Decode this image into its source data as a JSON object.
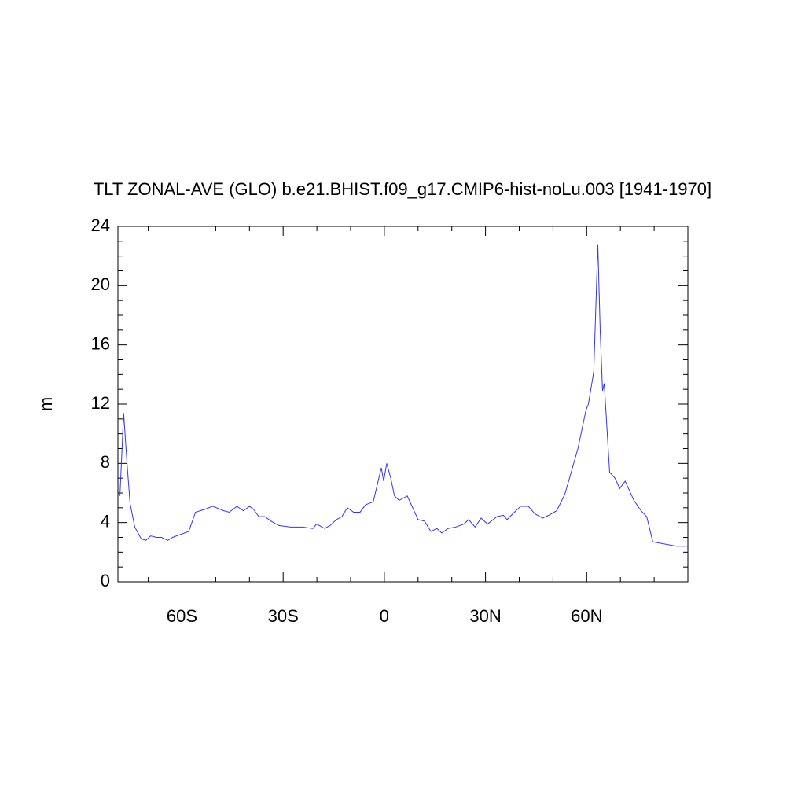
{
  "chart_data": {
    "type": "line",
    "title": "TLT ZONAL-AVE (GLO) b.e21.BHIST.f09_g17.CMIP6-hist-noLu.003 [1941-1970]",
    "ylabel": "m",
    "color": "#3333ff",
    "xlim": [
      -79,
      90
    ],
    "ylim": [
      0,
      24
    ],
    "xticks": [
      {
        "value": -60,
        "label": "60S"
      },
      {
        "value": -30,
        "label": "30S"
      },
      0,
      {
        "value": 30,
        "label": "30N"
      },
      {
        "value": 60,
        "label": "60N"
      }
    ],
    "xminorticks": [
      -70,
      -50,
      -40,
      -20,
      -10,
      10,
      20,
      40,
      50,
      70,
      80,
      90
    ],
    "yticks": [
      0,
      4,
      8,
      12,
      16,
      20,
      24
    ],
    "yminorticks": [
      1,
      2,
      3,
      5,
      6,
      7,
      9,
      10,
      11,
      13,
      14,
      15,
      17,
      18,
      19,
      21,
      22,
      23
    ],
    "x": [
      -78.4,
      -77.3,
      -76.3,
      -75.4,
      -74.0,
      -72.1,
      -70.7,
      -69.3,
      -67.5,
      -66.1,
      -64.2,
      -62.8,
      -58.0,
      -56.0,
      -53.2,
      -50.9,
      -47.6,
      -46.0,
      -43.7,
      -41.8,
      -40.0,
      -38.8,
      -37.2,
      -35.4,
      -33.6,
      -31.3,
      -27.8,
      -24.3,
      -21.2,
      -20.1,
      -17.7,
      -16.1,
      -14.2,
      -12.6,
      -11.0,
      -9.1,
      -7.2,
      -5.6,
      -3.3,
      -0.9,
      -0.2,
      0.7,
      1.9,
      3.0,
      4.4,
      6.8,
      8.4,
      10.0,
      11.9,
      13.8,
      15.6,
      17.0,
      18.9,
      21.2,
      23.6,
      25.0,
      26.9,
      28.7,
      30.6,
      33.4,
      35.3,
      36.4,
      38.1,
      40.4,
      42.7,
      44.6,
      46.9,
      48.8,
      51.1,
      53.5,
      54.9,
      57.4,
      59.8,
      60.5,
      62.1,
      63.3,
      64.0,
      64.7,
      65.2,
      66.8,
      68.4,
      69.8,
      71.4,
      72.6,
      74.0,
      76.1,
      77.8,
      79.6,
      81.9,
      84.3,
      86.6,
      90.0
    ],
    "values": [
      5.8,
      11.4,
      8.0,
      5.3,
      3.7,
      2.9,
      2.8,
      3.1,
      3.0,
      3.0,
      2.8,
      3.0,
      3.4,
      4.7,
      4.9,
      5.1,
      4.8,
      4.7,
      5.1,
      4.8,
      5.1,
      4.9,
      4.4,
      4.4,
      4.1,
      3.8,
      3.7,
      3.7,
      3.6,
      3.9,
      3.6,
      3.8,
      4.2,
      4.4,
      5.0,
      4.7,
      4.7,
      5.2,
      5.4,
      7.7,
      6.8,
      8.0,
      7.0,
      5.8,
      5.5,
      5.8,
      5.0,
      4.2,
      4.1,
      3.4,
      3.6,
      3.3,
      3.6,
      3.7,
      3.9,
      4.2,
      3.7,
      4.3,
      3.9,
      4.4,
      4.5,
      4.2,
      4.6,
      5.1,
      5.1,
      4.6,
      4.3,
      4.5,
      4.8,
      5.9,
      7.0,
      9.0,
      11.6,
      12.0,
      14.2,
      22.8,
      17.0,
      12.9,
      13.4,
      7.4,
      7.0,
      6.3,
      6.8,
      6.2,
      5.5,
      4.8,
      4.4,
      2.7,
      2.6,
      2.5,
      2.4,
      2.4
    ]
  }
}
